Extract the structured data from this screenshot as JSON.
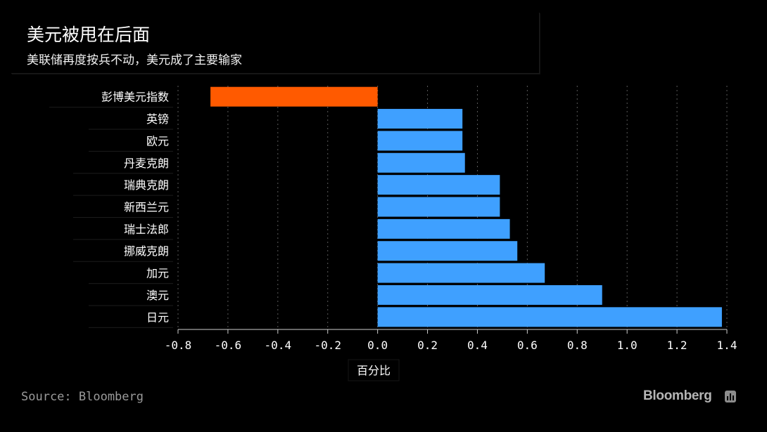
{
  "title": "美元被甩在后面",
  "subtitle": "美联储再度按兵不动，美元成了主要输家",
  "source": "Source: Bloomberg",
  "brand": "Bloomberg",
  "chart_data": {
    "type": "bar",
    "orientation": "horizontal",
    "categories": [
      "彭博美元指数",
      "英镑",
      "欧元",
      "丹麦克朗",
      "瑞典克朗",
      "新西兰元",
      "瑞士法郎",
      "挪威克朗",
      "加元",
      "澳元",
      "日元"
    ],
    "values": [
      -0.67,
      0.34,
      0.34,
      0.35,
      0.49,
      0.49,
      0.53,
      0.56,
      0.67,
      0.9,
      1.38
    ],
    "colors": [
      "#ff5a00",
      "#3fa0ff",
      "#3fa0ff",
      "#3fa0ff",
      "#3fa0ff",
      "#3fa0ff",
      "#3fa0ff",
      "#3fa0ff",
      "#3fa0ff",
      "#3fa0ff",
      "#3fa0ff"
    ],
    "xlabel": "百分比",
    "xlim": [
      -0.8,
      1.4
    ],
    "xticks": [
      "-0.8",
      "-0.6",
      "-0.4",
      "-0.2",
      "0.0",
      "0.2",
      "0.4",
      "0.6",
      "0.8",
      "1.0",
      "1.2",
      "1.4"
    ],
    "grid": true,
    "background": "#000000"
  }
}
